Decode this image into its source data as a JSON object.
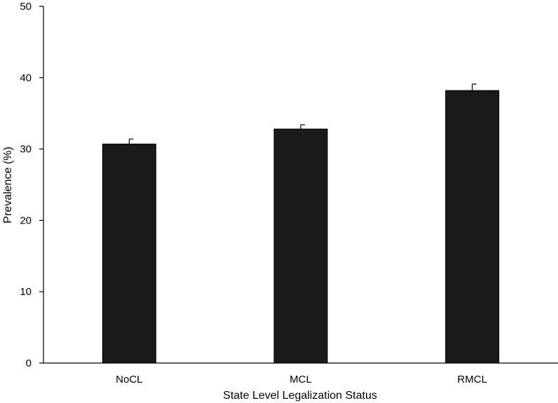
{
  "chart_data": {
    "type": "bar",
    "title": "",
    "xlabel": "State Level Legalization Status",
    "ylabel": "Prevalence (%)",
    "categories": [
      "NoCL",
      "MCL",
      "RMCL"
    ],
    "values": [
      30.7,
      32.8,
      38.2
    ],
    "error_upper": [
      0.7,
      0.6,
      0.9
    ],
    "ylim": [
      0,
      50
    ],
    "yticks": [
      0,
      10,
      20,
      30,
      40,
      50
    ],
    "grid": false,
    "legend": "none",
    "bar_color": "#1a1a1a"
  }
}
